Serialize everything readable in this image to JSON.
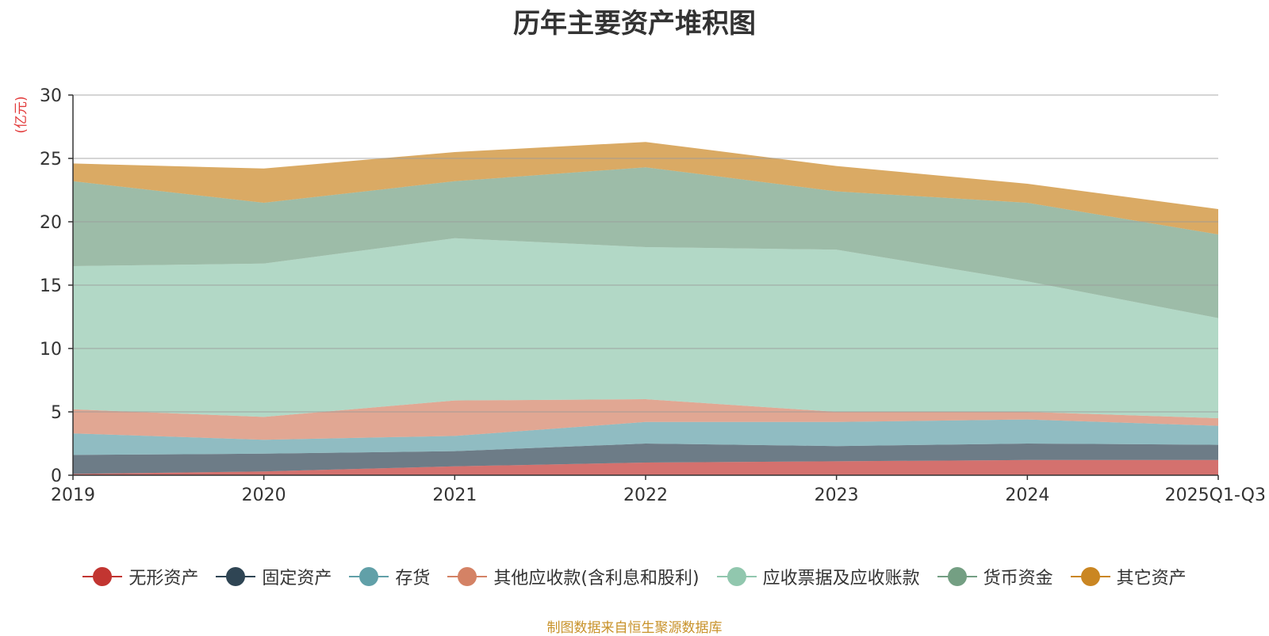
{
  "chart_data": {
    "type": "area",
    "stacked": true,
    "title": "历年主要资产堆积图",
    "ylabel": "(亿元)",
    "xlabel": "",
    "ylim": [
      0,
      30
    ],
    "yticks": [
      0,
      5,
      10,
      15,
      20,
      25,
      30
    ],
    "grid": true,
    "legend_position": "bottom",
    "categories": [
      "2019",
      "2020",
      "2021",
      "2022",
      "2023",
      "2024",
      "2025Q1-Q3"
    ],
    "series": [
      {
        "name": "无形资产",
        "color": "#c23531",
        "values": [
          0.1,
          0.3,
          0.7,
          1.0,
          1.1,
          1.2,
          1.2
        ]
      },
      {
        "name": "固定资产",
        "color": "#2f4554",
        "values": [
          1.5,
          1.4,
          1.2,
          1.5,
          1.2,
          1.3,
          1.2
        ]
      },
      {
        "name": "存货",
        "color": "#61a0a8",
        "values": [
          1.7,
          1.1,
          1.2,
          1.7,
          1.9,
          1.9,
          1.5
        ]
      },
      {
        "name": "其他应收款(含利息和股利)",
        "color": "#d48265",
        "values": [
          1.9,
          1.8,
          2.8,
          1.8,
          0.8,
          0.6,
          0.6
        ]
      },
      {
        "name": "应收票据及应收账款",
        "color": "#91c7ae",
        "values": [
          11.3,
          12.1,
          12.8,
          12.0,
          12.8,
          10.3,
          7.9
        ]
      },
      {
        "name": "货币资金",
        "color": "#749f83",
        "values": [
          6.7,
          4.8,
          4.5,
          6.3,
          4.6,
          6.2,
          6.6
        ]
      },
      {
        "name": "其它资产",
        "color": "#ca8622",
        "values": [
          1.4,
          2.7,
          2.3,
          2.0,
          2.0,
          1.5,
          2.0
        ]
      }
    ]
  },
  "source_note": "制图数据来自恒生聚源数据库"
}
